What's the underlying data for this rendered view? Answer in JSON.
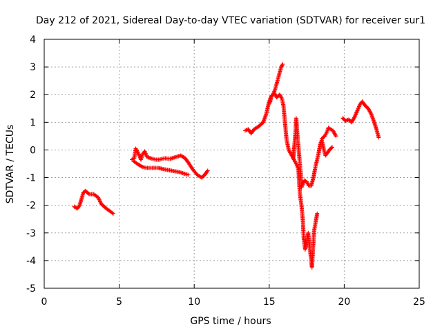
{
  "chart_data": {
    "type": "scatter",
    "title": "Day 212 of 2021, Sidereal Day-to-day VTEC variation (SDTVAR) for receiver sur1",
    "xlabel": "GPS time / hours",
    "ylabel": "SDTVAR / TECUs",
    "xlim": [
      0,
      25
    ],
    "ylim": [
      -5,
      4
    ],
    "xticks": [
      0,
      5,
      10,
      15,
      20,
      25
    ],
    "yticks": [
      -5,
      -4,
      -3,
      -2,
      -1,
      0,
      1,
      2,
      3,
      4
    ],
    "grid": true,
    "marker": "+",
    "color": "#ff0000",
    "segments": [
      {
        "name": "seg-a",
        "points": [
          [
            2.0,
            -2.05
          ],
          [
            2.2,
            -2.12
          ],
          [
            2.35,
            -2.02
          ],
          [
            2.5,
            -1.75
          ],
          [
            2.6,
            -1.55
          ],
          [
            2.75,
            -1.48
          ],
          [
            3.0,
            -1.6
          ],
          [
            3.3,
            -1.6
          ],
          [
            3.6,
            -1.72
          ],
          [
            3.8,
            -1.95
          ],
          [
            4.1,
            -2.1
          ],
          [
            4.4,
            -2.22
          ],
          [
            4.6,
            -2.3
          ]
        ]
      },
      {
        "name": "seg-b1",
        "points": [
          [
            5.85,
            -0.35
          ],
          [
            6.0,
            -0.3
          ],
          [
            6.1,
            0.05
          ],
          [
            6.25,
            -0.1
          ],
          [
            6.45,
            -0.35
          ],
          [
            6.55,
            -0.15
          ],
          [
            6.7,
            -0.05
          ],
          [
            6.85,
            -0.25
          ],
          [
            7.1,
            -0.3
          ],
          [
            7.4,
            -0.35
          ],
          [
            7.7,
            -0.35
          ],
          [
            8.0,
            -0.3
          ],
          [
            8.4,
            -0.32
          ],
          [
            8.8,
            -0.25
          ],
          [
            9.1,
            -0.2
          ],
          [
            9.4,
            -0.3
          ],
          [
            9.6,
            -0.45
          ],
          [
            9.9,
            -0.7
          ],
          [
            10.2,
            -0.9
          ],
          [
            10.5,
            -1.0
          ],
          [
            10.7,
            -0.9
          ],
          [
            10.9,
            -0.75
          ]
        ]
      },
      {
        "name": "seg-b2",
        "points": [
          [
            5.95,
            -0.4
          ],
          [
            6.2,
            -0.5
          ],
          [
            6.5,
            -0.6
          ],
          [
            6.8,
            -0.65
          ],
          [
            7.2,
            -0.65
          ],
          [
            7.6,
            -0.65
          ],
          [
            8.0,
            -0.7
          ],
          [
            8.5,
            -0.75
          ],
          [
            9.0,
            -0.8
          ],
          [
            9.3,
            -0.85
          ],
          [
            9.6,
            -0.9
          ]
        ]
      },
      {
        "name": "seg-c1",
        "points": [
          [
            13.4,
            0.7
          ],
          [
            13.6,
            0.75
          ],
          [
            13.8,
            0.6
          ],
          [
            14.0,
            0.75
          ],
          [
            14.3,
            0.85
          ],
          [
            14.6,
            1.0
          ],
          [
            14.8,
            1.3
          ],
          [
            14.95,
            1.65
          ],
          [
            15.1,
            1.9
          ],
          [
            15.25,
            2.0
          ],
          [
            15.4,
            2.2
          ],
          [
            15.5,
            2.4
          ],
          [
            15.6,
            2.6
          ],
          [
            15.7,
            2.8
          ],
          [
            15.8,
            3.0
          ],
          [
            15.9,
            3.1
          ]
        ]
      },
      {
        "name": "seg-c2",
        "points": [
          [
            15.05,
            1.7
          ],
          [
            15.15,
            1.95
          ],
          [
            15.35,
            2.05
          ],
          [
            15.5,
            1.9
          ],
          [
            15.7,
            2.0
          ],
          [
            15.85,
            1.85
          ],
          [
            15.95,
            1.6
          ],
          [
            16.05,
            1.0
          ],
          [
            16.15,
            0.4
          ],
          [
            16.3,
            0.0
          ],
          [
            16.5,
            -0.2
          ],
          [
            16.65,
            -0.35
          ],
          [
            16.8,
            -0.5
          ],
          [
            16.95,
            -0.7
          ],
          [
            17.0,
            -1.2
          ],
          [
            17.05,
            -1.6
          ],
          [
            17.15,
            -2.0
          ],
          [
            17.25,
            -2.6
          ],
          [
            17.3,
            -3.2
          ],
          [
            17.4,
            -3.6
          ],
          [
            17.5,
            -3.3
          ],
          [
            17.6,
            -3.0
          ],
          [
            17.7,
            -3.5
          ],
          [
            17.78,
            -3.9
          ],
          [
            17.85,
            -4.25
          ],
          [
            17.95,
            -3.3
          ],
          [
            18.0,
            -2.9
          ],
          [
            18.1,
            -2.6
          ],
          [
            18.2,
            -2.3
          ]
        ]
      },
      {
        "name": "seg-c3",
        "points": [
          [
            16.65,
            0.05
          ],
          [
            16.6,
            -0.3
          ],
          [
            16.75,
            0.6
          ],
          [
            16.8,
            1.15
          ],
          [
            16.9,
            0.4
          ],
          [
            17.0,
            -0.2
          ],
          [
            17.1,
            -0.85
          ],
          [
            17.15,
            -1.35
          ],
          [
            17.35,
            -1.1
          ],
          [
            17.5,
            -1.15
          ],
          [
            17.65,
            -1.3
          ],
          [
            17.8,
            -1.3
          ],
          [
            17.95,
            -1.0
          ],
          [
            18.05,
            -0.7
          ],
          [
            18.15,
            -0.45
          ],
          [
            18.3,
            -0.1
          ],
          [
            18.4,
            0.2
          ],
          [
            18.5,
            0.35
          ],
          [
            18.65,
            0.0
          ],
          [
            18.75,
            -0.2
          ],
          [
            18.9,
            -0.1
          ],
          [
            19.0,
            0.0
          ],
          [
            19.1,
            0.05
          ],
          [
            19.2,
            0.1
          ]
        ]
      },
      {
        "name": "seg-c4",
        "points": [
          [
            18.5,
            0.4
          ],
          [
            18.7,
            0.5
          ],
          [
            18.85,
            0.65
          ],
          [
            18.95,
            0.8
          ],
          [
            19.1,
            0.75
          ],
          [
            19.25,
            0.7
          ],
          [
            19.45,
            0.5
          ]
        ]
      },
      {
        "name": "seg-d",
        "points": [
          [
            19.9,
            1.15
          ],
          [
            20.1,
            1.05
          ],
          [
            20.3,
            1.1
          ],
          [
            20.5,
            1.0
          ],
          [
            20.7,
            1.2
          ],
          [
            20.9,
            1.45
          ],
          [
            21.05,
            1.65
          ],
          [
            21.2,
            1.75
          ],
          [
            21.4,
            1.6
          ],
          [
            21.6,
            1.5
          ],
          [
            21.8,
            1.3
          ],
          [
            22.0,
            1.0
          ],
          [
            22.15,
            0.75
          ],
          [
            22.3,
            0.45
          ]
        ]
      }
    ]
  }
}
